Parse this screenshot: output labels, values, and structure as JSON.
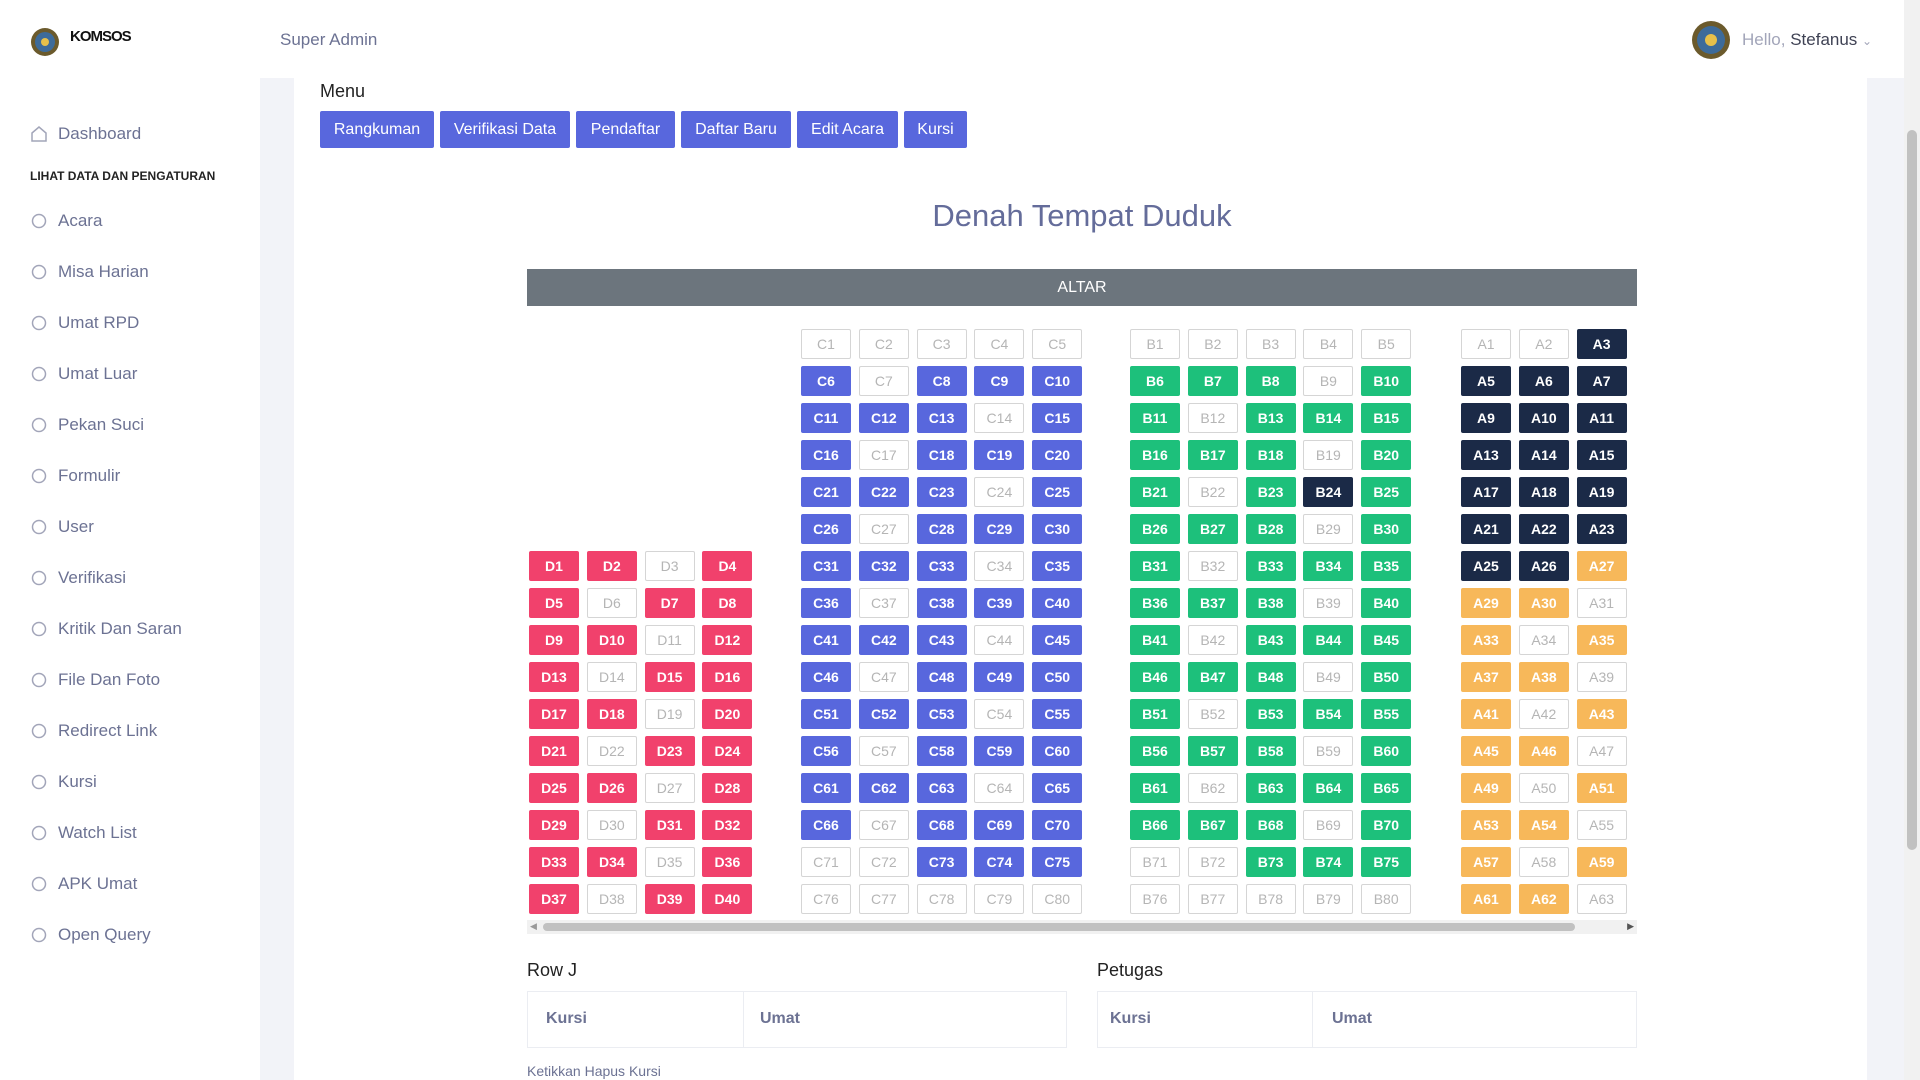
{
  "header": {
    "brand": "KOMSOS",
    "role": "Super Admin",
    "greeting": "Hello,",
    "user": "Stefanus"
  },
  "sidebar": {
    "first": "Dashboard",
    "section": "LIHAT DATA DAN PENGATURAN",
    "items": [
      "Acara",
      "Misa Harian",
      "Umat RPD",
      "Umat Luar",
      "Pekan Suci",
      "Formulir",
      "User",
      "Verifikasi",
      "Kritik Dan Saran",
      "File Dan Foto",
      "Redirect Link",
      "Kursi",
      "Watch List",
      "APK Umat",
      "Open Query"
    ]
  },
  "menu": {
    "label": "Menu",
    "buttons": [
      "Rangkuman",
      "Verifikasi Data",
      "Pendaftar",
      "Daftar Baru",
      "Edit Acara",
      "Kursi"
    ]
  },
  "seating": {
    "title": "Denah Tempat Duduk",
    "altar": "ALTAR",
    "sections": [
      {
        "seats": [
          "D1",
          "D2",
          "D3",
          "D4",
          "D5",
          "D6",
          "D7",
          "D8",
          "D9",
          "D10",
          "D11",
          "D12",
          "D13",
          "D14",
          "D15",
          "D16",
          "D17",
          "D18",
          "D19",
          "D20",
          "D21",
          "D22",
          "D23",
          "D24",
          "D25",
          "D26",
          "D27",
          "D28",
          "D29",
          "D30",
          "D31",
          "D32",
          "D33",
          "D34",
          "D35",
          "D36",
          "D37",
          "D38",
          "D39",
          "D40"
        ],
        "fills": [
          "#f1416c",
          "#f1416c",
          null,
          "#f1416c",
          "#f1416c",
          null,
          "#f1416c",
          "#f1416c",
          "#f1416c",
          "#f1416c",
          null,
          "#f1416c",
          "#f1416c",
          null,
          "#f1416c",
          "#f1416c",
          "#f1416c",
          "#f1416c",
          null,
          "#f1416c",
          "#f1416c",
          null,
          "#f1416c",
          "#f1416c",
          "#f1416c",
          "#f1416c",
          null,
          "#f1416c",
          "#f1416c",
          null,
          "#f1416c",
          "#f1416c",
          "#f1416c",
          "#f1416c",
          null,
          "#f1416c",
          "#f1416c",
          null,
          "#f1416c",
          "#f1416c"
        ]
      },
      {
        "seats": [
          "C1",
          "C2",
          "C3",
          "C4",
          "C5",
          "C6",
          "C7",
          "C8",
          "C9",
          "C10",
          "C11",
          "C12",
          "C13",
          "C14",
          "C15",
          "C16",
          "C17",
          "C18",
          "C19",
          "C20",
          "C21",
          "C22",
          "C23",
          "C24",
          "C25",
          "C26",
          "C27",
          "C28",
          "C29",
          "C30",
          "C31",
          "C32",
          "C33",
          "C34",
          "C35",
          "C36",
          "C37",
          "C38",
          "C39",
          "C40",
          "C41",
          "C42",
          "C43",
          "C44",
          "C45",
          "C46",
          "C47",
          "C48",
          "C49",
          "C50",
          "C51",
          "C52",
          "C53",
          "C54",
          "C55",
          "C56",
          "C57",
          "C58",
          "C59",
          "C60",
          "C61",
          "C62",
          "C63",
          "C64",
          "C65",
          "C66",
          "C67",
          "C68",
          "C69",
          "C70",
          "C71",
          "C72",
          "C73",
          "C74",
          "C75",
          "C76",
          "C77",
          "C78",
          "C79",
          "C80"
        ],
        "fills": [
          null,
          null,
          null,
          null,
          null,
          "#5867dd",
          null,
          "#5867dd",
          "#5867dd",
          "#5867dd",
          "#5867dd",
          "#5867dd",
          "#5867dd",
          null,
          "#5867dd",
          "#5867dd",
          null,
          "#5867dd",
          "#5867dd",
          "#5867dd",
          "#5867dd",
          "#5867dd",
          "#5867dd",
          null,
          "#5867dd",
          "#5867dd",
          null,
          "#5867dd",
          "#5867dd",
          "#5867dd",
          "#5867dd",
          "#5867dd",
          "#5867dd",
          null,
          "#5867dd",
          "#5867dd",
          null,
          "#5867dd",
          "#5867dd",
          "#5867dd",
          "#5867dd",
          "#5867dd",
          "#5867dd",
          null,
          "#5867dd",
          "#5867dd",
          null,
          "#5867dd",
          "#5867dd",
          "#5867dd",
          "#5867dd",
          "#5867dd",
          "#5867dd",
          null,
          "#5867dd",
          "#5867dd",
          null,
          "#5867dd",
          "#5867dd",
          "#5867dd",
          "#5867dd",
          "#5867dd",
          "#5867dd",
          null,
          "#5867dd",
          "#5867dd",
          null,
          "#5867dd",
          "#5867dd",
          "#5867dd",
          null,
          null,
          "#5867dd",
          "#5867dd",
          "#5867dd",
          null,
          null,
          null,
          null,
          null
        ]
      },
      {
        "seats": [
          "B1",
          "B2",
          "B3",
          "B4",
          "B5",
          "B6",
          "B7",
          "B8",
          "B9",
          "B10",
          "B11",
          "B12",
          "B13",
          "B14",
          "B15",
          "B16",
          "B17",
          "B18",
          "B19",
          "B20",
          "B21",
          "B22",
          "B23",
          "B24",
          "B25",
          "B26",
          "B27",
          "B28",
          "B29",
          "B30",
          "B31",
          "B32",
          "B33",
          "B34",
          "B35",
          "B36",
          "B37",
          "B38",
          "B39",
          "B40",
          "B41",
          "B42",
          "B43",
          "B44",
          "B45",
          "B46",
          "B47",
          "B48",
          "B49",
          "B50",
          "B51",
          "B52",
          "B53",
          "B54",
          "B55",
          "B56",
          "B57",
          "B58",
          "B59",
          "B60",
          "B61",
          "B62",
          "B63",
          "B64",
          "B65",
          "B66",
          "B67",
          "B68",
          "B69",
          "B70",
          "B71",
          "B72",
          "B73",
          "B74",
          "B75",
          "B76",
          "B77",
          "B78",
          "B79",
          "B80"
        ],
        "fills": [
          null,
          null,
          null,
          null,
          null,
          "#1dc07b",
          "#1dc07b",
          "#1dc07b",
          null,
          "#1dc07b",
          "#1dc07b",
          null,
          "#1dc07b",
          "#1dc07b",
          "#1dc07b",
          "#1dc07b",
          "#1dc07b",
          "#1dc07b",
          null,
          "#1dc07b",
          "#1dc07b",
          null,
          "#1dc07b",
          "#1b2a47",
          "#1dc07b",
          "#1dc07b",
          "#1dc07b",
          "#1dc07b",
          null,
          "#1dc07b",
          "#1dc07b",
          null,
          "#1dc07b",
          "#1dc07b",
          "#1dc07b",
          "#1dc07b",
          "#1dc07b",
          "#1dc07b",
          null,
          "#1dc07b",
          "#1dc07b",
          null,
          "#1dc07b",
          "#1dc07b",
          "#1dc07b",
          "#1dc07b",
          "#1dc07b",
          "#1dc07b",
          null,
          "#1dc07b",
          "#1dc07b",
          null,
          "#1dc07b",
          "#1dc07b",
          "#1dc07b",
          "#1dc07b",
          "#1dc07b",
          "#1dc07b",
          null,
          "#1dc07b",
          "#1dc07b",
          null,
          "#1dc07b",
          "#1dc07b",
          "#1dc07b",
          "#1dc07b",
          "#1dc07b",
          "#1dc07b",
          null,
          "#1dc07b",
          null,
          null,
          "#1dc07b",
          "#1dc07b",
          "#1dc07b",
          null,
          null,
          null,
          null,
          null
        ]
      },
      {
        "seats": [
          "A1",
          "A2",
          "A3",
          "A5",
          "A6",
          "A7",
          "A9",
          "A10",
          "A11",
          "A13",
          "A14",
          "A15",
          "A17",
          "A18",
          "A19",
          "A21",
          "A22",
          "A23",
          "A25",
          "A26",
          "A27",
          "A29",
          "A30",
          "A31",
          "A33",
          "A34",
          "A35",
          "A37",
          "A38",
          "A39",
          "A41",
          "A42",
          "A43",
          "A45",
          "A46",
          "A47",
          "A49",
          "A50",
          "A51",
          "A53",
          "A54",
          "A55",
          "A57",
          "A58",
          "A59",
          "A61",
          "A62",
          "A63"
        ],
        "fills": [
          null,
          null,
          "#1b2a47",
          "#1b2a47",
          "#1b2a47",
          "#1b2a47",
          "#1b2a47",
          "#1b2a47",
          "#1b2a47",
          "#1b2a47",
          "#1b2a47",
          "#1b2a47",
          "#1b2a47",
          "#1b2a47",
          "#1b2a47",
          "#1b2a47",
          "#1b2a47",
          "#1b2a47",
          "#1b2a47",
          "#1b2a47",
          "#f7b85a",
          "#f7b85a",
          "#f7b85a",
          null,
          "#f7b85a",
          null,
          "#f7b85a",
          "#f7b85a",
          "#f7b85a",
          null,
          "#f7b85a",
          null,
          "#f7b85a",
          "#f7b85a",
          "#f7b85a",
          null,
          "#f7b85a",
          null,
          "#f7b85a",
          "#f7b85a",
          "#f7b85a",
          null,
          "#f7b85a",
          null,
          "#f7b85a",
          "#f7b85a",
          "#f7b85a",
          null
        ]
      }
    ]
  },
  "row_j": {
    "title": "Row J",
    "columns": [
      "Kursi",
      "Umat"
    ]
  },
  "petugas": {
    "title": "Petugas",
    "columns": [
      "Kursi",
      "Umat"
    ]
  },
  "note": "Ketikkan Hapus Kursi"
}
